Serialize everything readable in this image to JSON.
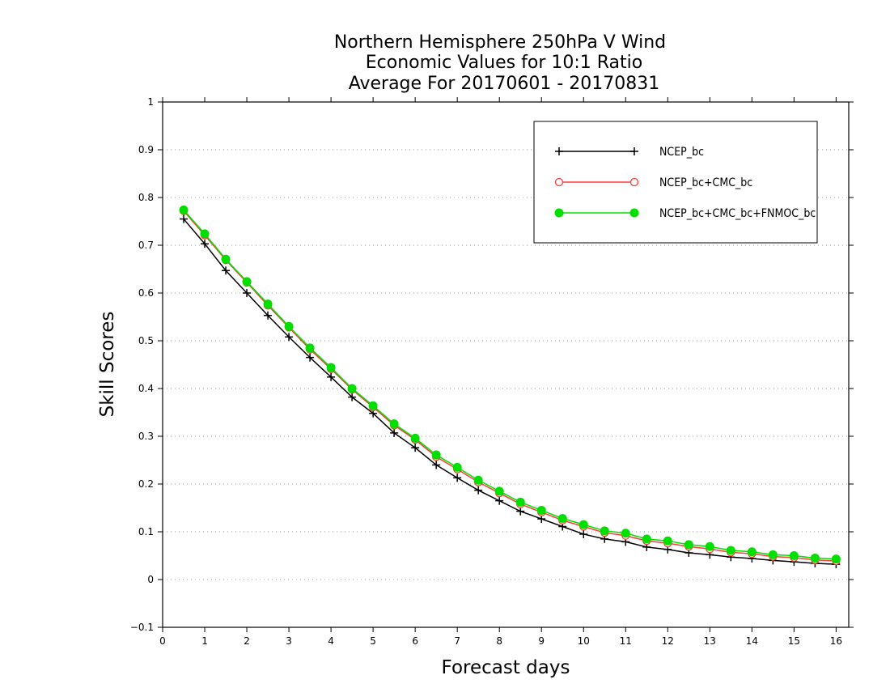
{
  "chart_data": {
    "type": "line",
    "title": [
      "Northern Hemisphere 250hPa V Wind",
      "Economic Values for 10:1 Ratio",
      "Average For 20170601 - 20170831"
    ],
    "xlabel": "Forecast days",
    "ylabel": "Skill Scores",
    "xlim": [
      0,
      16.3
    ],
    "ylim": [
      -0.1,
      1
    ],
    "xticks": [
      "0",
      "1",
      "2",
      "3",
      "4",
      "5",
      "6",
      "7",
      "8",
      "9",
      "10",
      "11",
      "12",
      "13",
      "14",
      "15",
      "16"
    ],
    "yticks": [
      "−0.1",
      "0",
      "0.1",
      "0.2",
      "0.3",
      "0.4",
      "0.5",
      "0.6",
      "0.7",
      "0.8",
      "0.9",
      "1"
    ],
    "grid": true,
    "legend_position": "top-right",
    "x": [
      0.5,
      1,
      1.5,
      2,
      2.5,
      3,
      3.5,
      4,
      4.5,
      5,
      5.5,
      6,
      6.5,
      7,
      7.5,
      8,
      8.5,
      9,
      9.5,
      10,
      10.5,
      11,
      11.5,
      12,
      12.5,
      13,
      13.5,
      14,
      14.5,
      15,
      15.5,
      16
    ],
    "series": [
      {
        "name": "NCEP_bc",
        "color": "#000000",
        "marker": "plus",
        "values": [
          0.755,
          0.703,
          0.647,
          0.6,
          0.553,
          0.508,
          0.465,
          0.424,
          0.382,
          0.348,
          0.307,
          0.276,
          0.24,
          0.213,
          0.187,
          0.165,
          0.143,
          0.127,
          0.111,
          0.095,
          0.085,
          0.079,
          0.068,
          0.063,
          0.056,
          0.052,
          0.047,
          0.044,
          0.04,
          0.037,
          0.034,
          0.032
        ]
      },
      {
        "name": "NCEP_bc+CMC_bc",
        "color": "#ff3b3b",
        "marker": "circle-open",
        "values": [
          0.772,
          0.721,
          0.669,
          0.622,
          0.574,
          0.528,
          0.482,
          0.441,
          0.398,
          0.361,
          0.323,
          0.293,
          0.257,
          0.231,
          0.204,
          0.181,
          0.158,
          0.141,
          0.124,
          0.111,
          0.098,
          0.092,
          0.081,
          0.076,
          0.069,
          0.064,
          0.057,
          0.054,
          0.048,
          0.046,
          0.041,
          0.039
        ]
      },
      {
        "name": "NCEP_bc+CMC_bc+FNMOC_bc",
        "color": "#00e000",
        "marker": "circle-filled",
        "values": [
          0.774,
          0.724,
          0.671,
          0.624,
          0.577,
          0.53,
          0.485,
          0.444,
          0.4,
          0.364,
          0.326,
          0.296,
          0.261,
          0.235,
          0.208,
          0.185,
          0.162,
          0.145,
          0.128,
          0.115,
          0.102,
          0.097,
          0.085,
          0.081,
          0.073,
          0.069,
          0.061,
          0.058,
          0.052,
          0.05,
          0.045,
          0.043
        ]
      }
    ]
  }
}
